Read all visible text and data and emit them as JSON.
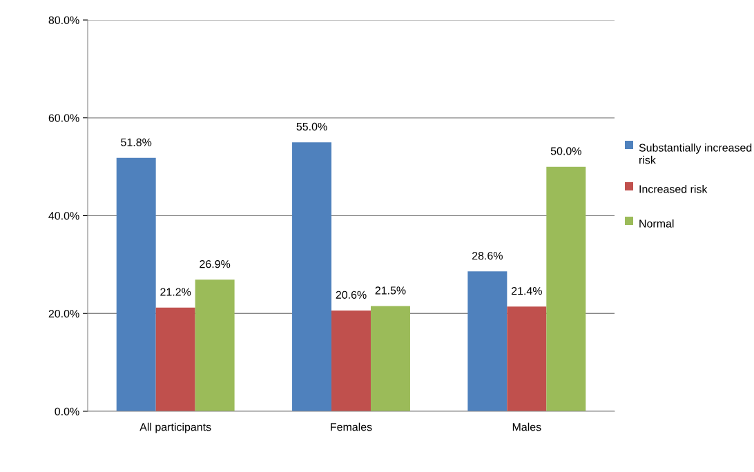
{
  "chart_data": {
    "type": "bar",
    "categories": [
      "All participants",
      "Females",
      "Males"
    ],
    "series": [
      {
        "name": "Substantially increased risk",
        "color": "#4f81bd",
        "values": [
          51.8,
          55.0,
          28.6
        ],
        "value_labels": [
          "51.8%",
          "55.0%",
          "28.6%"
        ]
      },
      {
        "name": "Increased risk",
        "color": "#c0504d",
        "values": [
          21.2,
          20.6,
          21.4
        ],
        "value_labels": [
          "21.2%",
          "20.6%",
          "21.4%"
        ]
      },
      {
        "name": "Normal",
        "color": "#9bbb59",
        "values": [
          26.9,
          21.5,
          50.0
        ],
        "value_labels": [
          "26.9%",
          "21.5%",
          "50.0%"
        ]
      }
    ],
    "ylim": [
      0,
      80
    ],
    "yticks": [
      {
        "value": 0,
        "label": "0.0%"
      },
      {
        "value": 20,
        "label": "20.0%"
      },
      {
        "value": 40,
        "label": "40.0%"
      },
      {
        "value": 60,
        "label": "60.0%"
      },
      {
        "value": 80,
        "label": "80.0%"
      }
    ],
    "grid": "y",
    "legend": "right"
  }
}
